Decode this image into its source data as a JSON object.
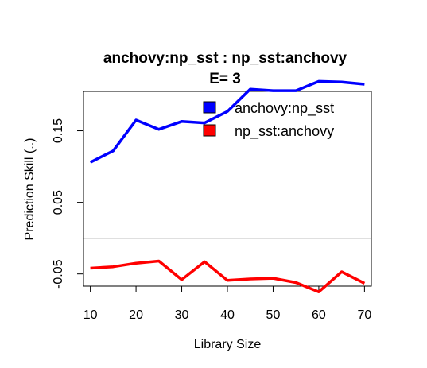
{
  "chart_data": {
    "type": "line",
    "title": "anchovy:np_sst  :  np_sst:anchovy",
    "subtitle": "E= 3",
    "xlabel": "Library Size",
    "ylabel": "Prediction Skill (..)",
    "xlim": [
      8.5,
      71.5
    ],
    "ylim": [
      -0.067,
      0.205
    ],
    "xticks": [
      10,
      20,
      30,
      40,
      50,
      60,
      70
    ],
    "yticks": [
      -0.05,
      0.05,
      0.15
    ],
    "xtick_labels": [
      "10",
      "20",
      "30",
      "40",
      "50",
      "60",
      "70"
    ],
    "ytick_labels": [
      "-0.05",
      "0.05",
      "0.15"
    ],
    "reference_line": 0,
    "legend_position": "top-right",
    "x": [
      10,
      15,
      20,
      25,
      30,
      35,
      40,
      45,
      50,
      55,
      60,
      65,
      70
    ],
    "series": [
      {
        "name": "anchovy:np_sst",
        "color": "#0000ff",
        "values": [
          0.106,
          0.122,
          0.165,
          0.152,
          0.163,
          0.161,
          0.177,
          0.208,
          0.206,
          0.206,
          0.219,
          0.218,
          0.215
        ]
      },
      {
        "name": "np_sst:anchovy",
        "color": "#ff0000",
        "values": [
          -0.042,
          -0.04,
          -0.035,
          -0.032,
          -0.058,
          -0.033,
          -0.059,
          -0.057,
          -0.056,
          -0.062,
          -0.075,
          -0.047,
          -0.063
        ]
      }
    ]
  }
}
